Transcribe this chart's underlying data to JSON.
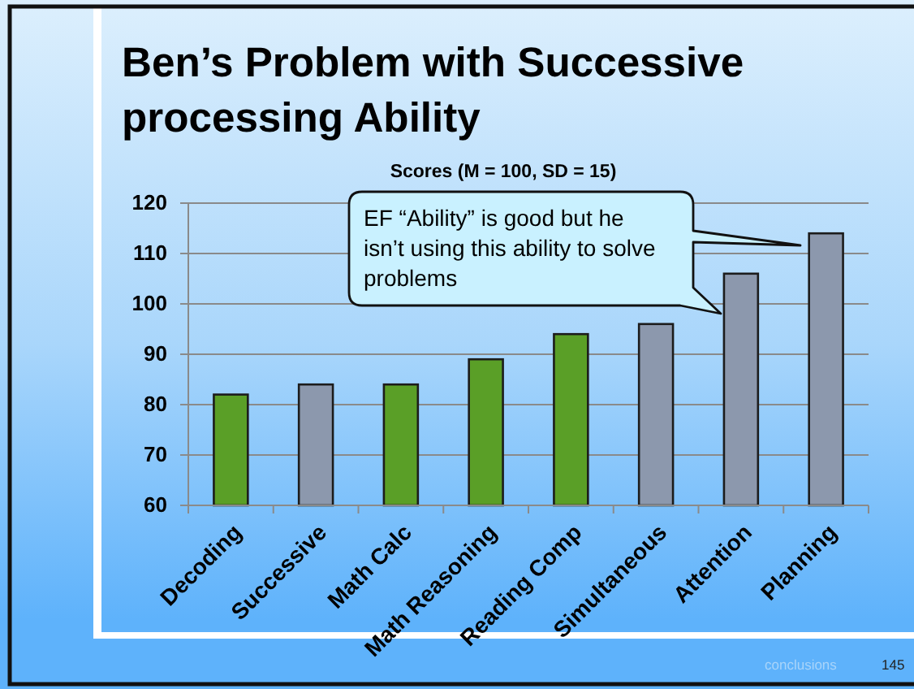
{
  "chart_data": {
    "type": "bar",
    "title": "Ben’s Problem with Successive processing Ability",
    "subtitle": "Scores (M = 100, SD = 15)",
    "categories": [
      "Decoding",
      "Successive",
      "Math Calc",
      "Math Reasoning",
      "Reading Comp",
      "Simultaneous",
      "Attention",
      "Planning"
    ],
    "values": [
      82,
      84,
      84,
      89,
      94,
      96,
      106,
      114
    ],
    "colors": [
      "#5a9f27",
      "#8c98ad",
      "#5a9f27",
      "#5a9f27",
      "#5a9f27",
      "#8c98ad",
      "#8c98ad",
      "#8c98ad"
    ],
    "ylim": [
      60,
      120
    ],
    "yticks": [
      60,
      70,
      80,
      90,
      100,
      110,
      120
    ],
    "grid": "y",
    "annotations": [
      "EF “Ability” is good but he isn’t using this ability to solve problems",
      "conclusions",
      "145"
    ]
  }
}
